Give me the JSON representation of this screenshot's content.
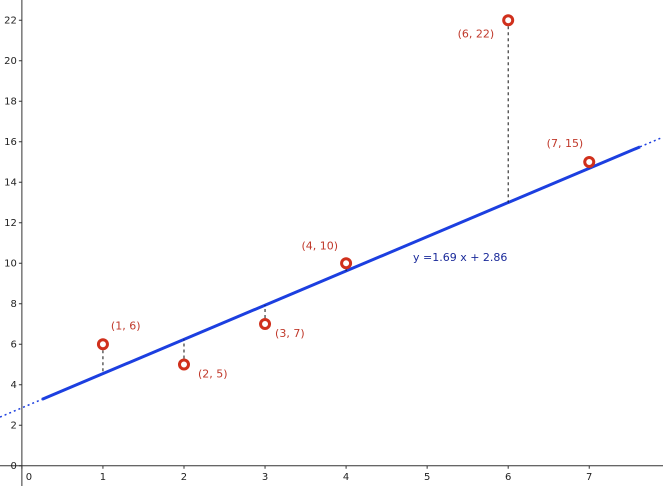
{
  "chart_data": {
    "type": "scatter",
    "x": [
      1,
      2,
      3,
      4,
      6,
      7
    ],
    "values": [
      6,
      5,
      7,
      10,
      22,
      15
    ],
    "point_labels": [
      "(1, 6)",
      "(2, 5)",
      "(3, 7)",
      "(4, 10)",
      "(6, 22)",
      "(7, 15)"
    ],
    "color": "#d0301c",
    "regression": {
      "label": "y =1.69 x + 2.86",
      "slope": 1.69,
      "intercept": 2.86,
      "color": "#1c3fe0",
      "label_color": "#1a2a9a"
    },
    "xlim": [
      -0.27,
      7.91
    ],
    "ylim": [
      -1,
      23
    ],
    "xticks": [
      0,
      1,
      2,
      3,
      4,
      5,
      6,
      7
    ],
    "yticks": [
      0,
      2,
      4,
      6,
      8,
      10,
      12,
      14,
      16,
      18,
      20,
      22
    ]
  }
}
